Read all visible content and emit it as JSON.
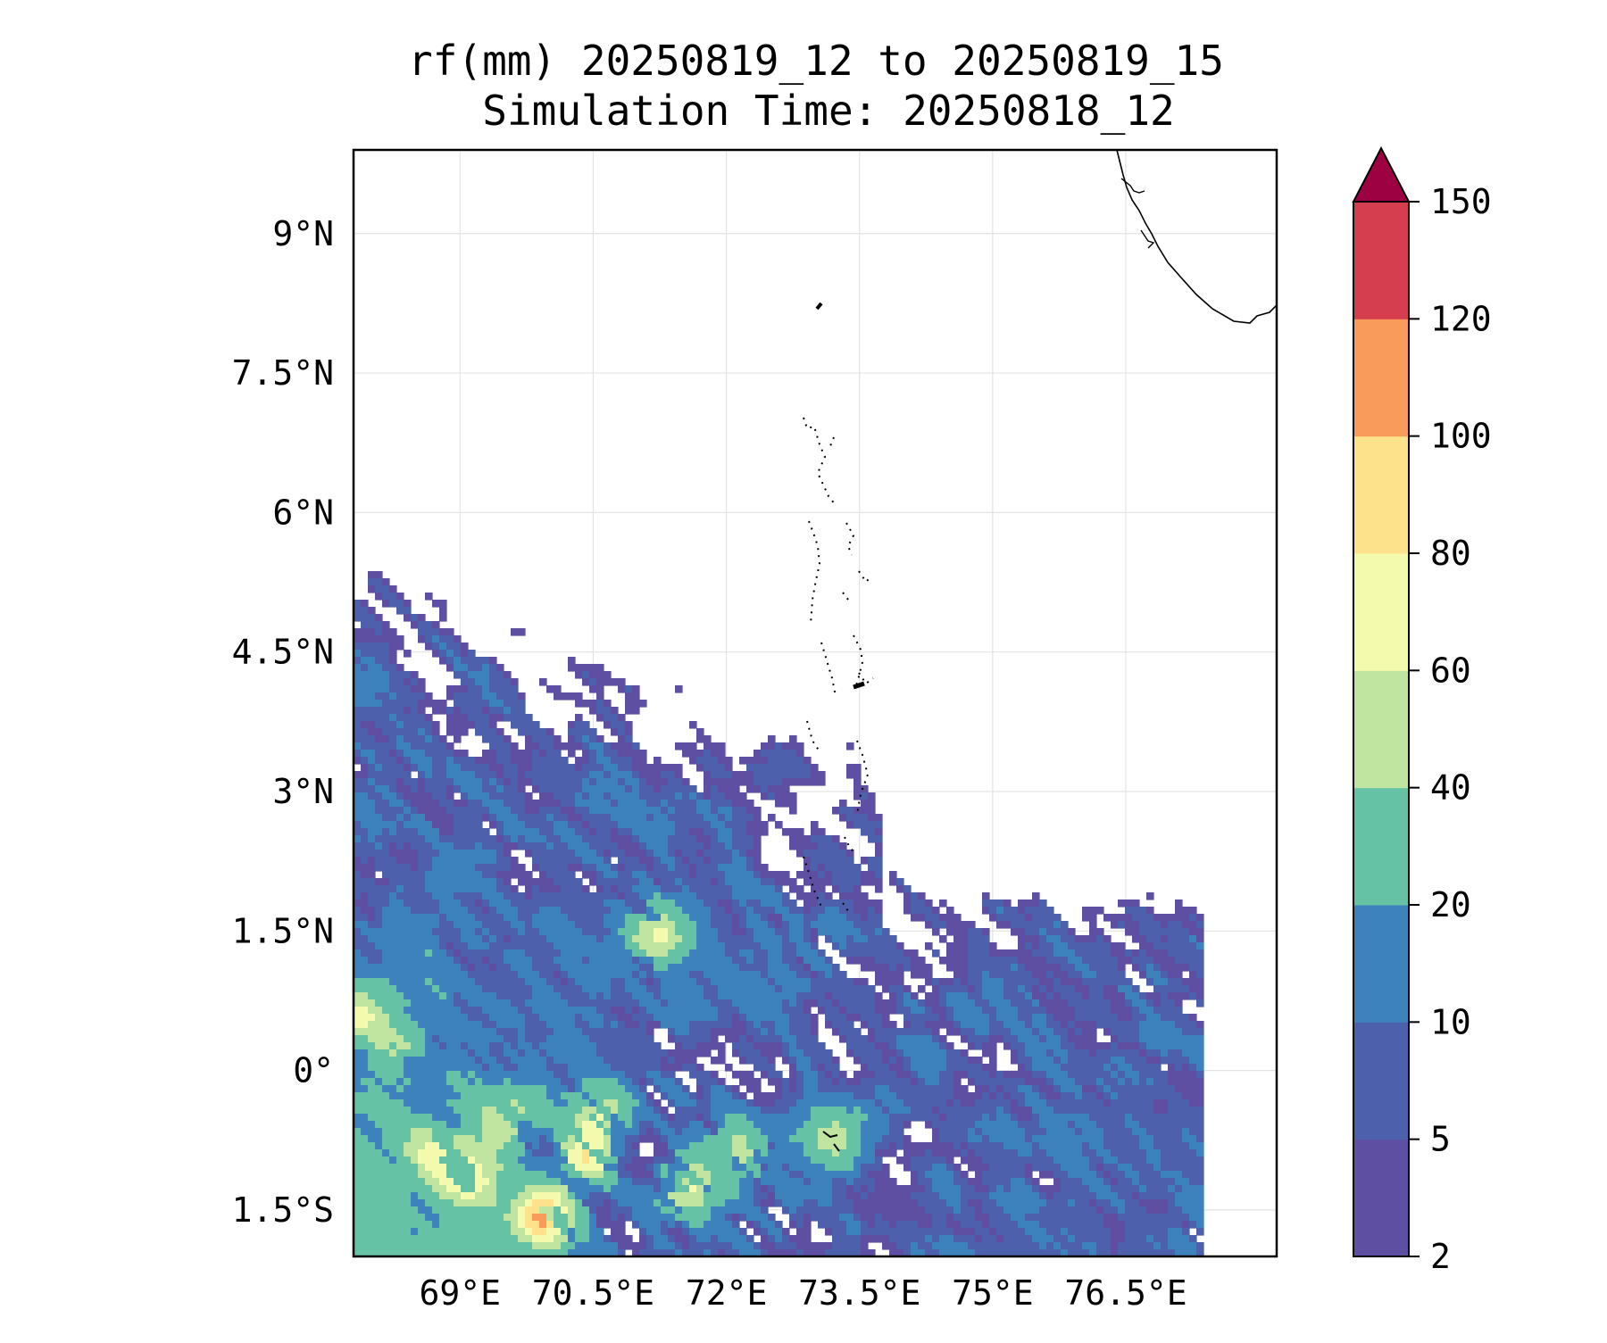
{
  "title": {
    "line1": "rf(mm) 20250819_12 to 20250819_15",
    "line2": "Simulation Time: 20250818_12"
  },
  "map": {
    "lon_range": [
      67.8,
      78.2
    ],
    "lat_range": [
      -2.0,
      9.9
    ],
    "lon_ticks": [
      69,
      70.5,
      72,
      73.5,
      75,
      76.5
    ],
    "lon_tick_labels": [
      "69°E",
      "70.5°E",
      "72°E",
      "73.5°E",
      "75°E",
      "76.5°E"
    ],
    "lat_ticks": [
      9,
      7.5,
      6,
      4.5,
      3,
      1.5,
      0,
      -1.5
    ],
    "lat_tick_labels": [
      "9°N",
      "7.5°N",
      "6°N",
      "4.5°N",
      "3°N",
      "1.5°N",
      "0°",
      "1.5°S"
    ],
    "gridlines": true,
    "coastline_color": "#000000"
  },
  "colorbar": {
    "levels": [
      2,
      5,
      10,
      20,
      40,
      60,
      80,
      100,
      120,
      150
    ],
    "labels": [
      "2",
      "5",
      "10",
      "20",
      "40",
      "60",
      "80",
      "100",
      "120",
      "150"
    ],
    "colors": [
      "#5e4fa2",
      "#4d60ab",
      "#3e82bb",
      "#66c2a5",
      "#bfe5a0",
      "#f4faad",
      "#fde18b",
      "#f99b5a",
      "#d53e4f"
    ],
    "extend_color": "#9e0142",
    "extend": "max"
  }
}
